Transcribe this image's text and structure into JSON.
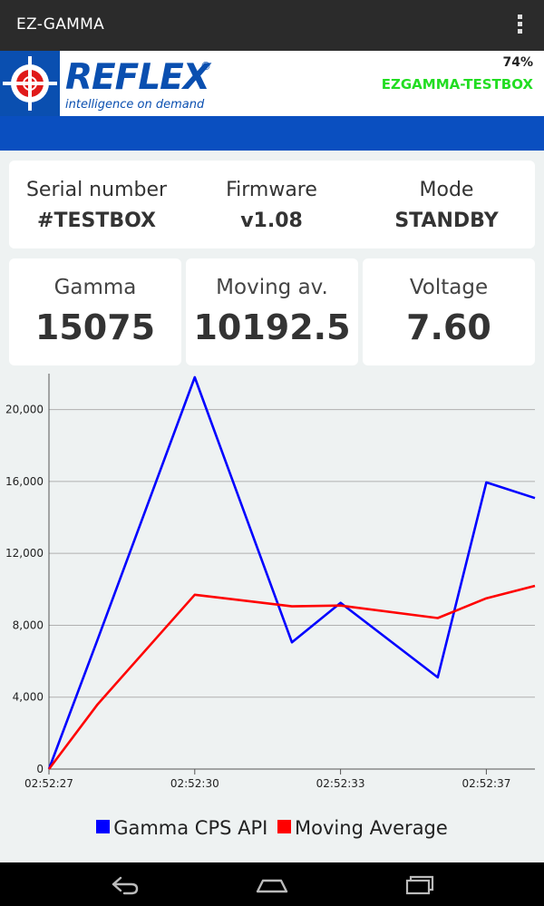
{
  "app": {
    "title": "EZ-GAMMA"
  },
  "brand": {
    "logo_word": "REFLEX",
    "logo_reg": "®",
    "tagline": "intelligence on demand",
    "battery": "74%",
    "device_name": "EZGAMMA-TESTBOX",
    "logo_color": "#0a4fb0",
    "device_name_color": "#22dd22"
  },
  "info": {
    "serial_label": "Serial number",
    "serial_value": "#TESTBOX",
    "firmware_label": "Firmware",
    "firmware_value": "v1.08",
    "mode_label": "Mode",
    "mode_value": "STANDBY"
  },
  "stats": {
    "gamma_label": "Gamma",
    "gamma_value": "15075",
    "moving_label": "Moving av.",
    "moving_value": "10192.5",
    "voltage_label": "Voltage",
    "voltage_value": "7.60"
  },
  "chart_data": {
    "type": "line",
    "x": [
      "02:52:27",
      "02:52:28",
      "02:52:29",
      "02:52:30",
      "02:52:31",
      "02:52:32",
      "02:52:33",
      "02:52:34",
      "02:52:35",
      "02:52:37",
      "02:52:38"
    ],
    "xticks": [
      "02:52:27",
      "02:52:30",
      "02:52:33",
      "02:52:37"
    ],
    "yticks": [
      "0",
      "4,000",
      "8,000",
      "12,000",
      "16,000",
      "20,000"
    ],
    "ylim": [
      0,
      22000
    ],
    "grid": true,
    "legend_position": "bottom",
    "series": [
      {
        "name": "Gamma CPS API",
        "color": "#0000ff",
        "values": [
          0,
          7200,
          null,
          21800,
          null,
          7050,
          9250,
          null,
          5100,
          15950,
          15075
        ]
      },
      {
        "name": "Moving Average",
        "color": "#ff0000",
        "values": [
          0,
          3600,
          null,
          9700,
          null,
          9050,
          9100,
          null,
          8400,
          9500,
          10192.5
        ]
      }
    ]
  }
}
